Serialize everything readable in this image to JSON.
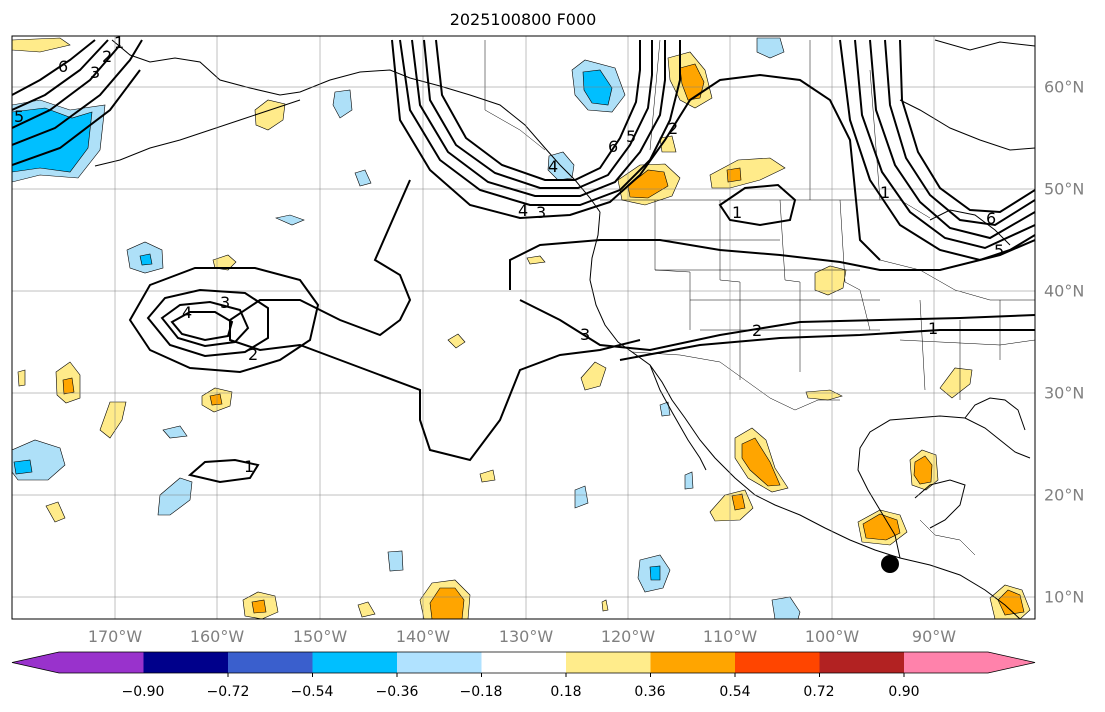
{
  "title": "2025100800 F000",
  "map": {
    "projection": "PlateCarree",
    "lon_range": [
      -180,
      -81
    ],
    "lat_range": [
      8,
      65
    ],
    "lon_labels": [
      "170°W",
      "160°W",
      "150°W",
      "140°W",
      "130°W",
      "120°W",
      "110°W",
      "100°W",
      "90°W"
    ],
    "lat_labels": [
      "60°N",
      "50°N",
      "40°N",
      "30°N",
      "20°N",
      "10°N"
    ],
    "contour_labels": [
      "6",
      "5",
      "3",
      "2",
      "1",
      "4",
      "4",
      "3",
      "6",
      "5",
      "2",
      "1",
      "4",
      "3",
      "2",
      "3",
      "2",
      "1",
      "1",
      "6",
      "5",
      "1"
    ],
    "storm_marker": {
      "symbol": "filled-circle",
      "color": "#000000"
    },
    "fill_colors": {
      "light_blue": "#aee0f8",
      "cyan": "#00bfff",
      "light_yellow": "#ffeb8a",
      "orange": "#ffa500"
    }
  },
  "colorbar": {
    "colors": [
      "#9932cc",
      "#00008b",
      "#3a5fcd",
      "#00bfff",
      "#b0e2ff",
      "#ffffff",
      "#ffec8b",
      "#ffa500",
      "#ff4500",
      "#b22222",
      "#ff82ab"
    ],
    "tick_labels": [
      "−0.90",
      "−0.72",
      "−0.54",
      "−0.36",
      "−0.18",
      "0.18",
      "0.36",
      "0.54",
      "0.72",
      "0.90"
    ],
    "ticks": [
      -0.9,
      -0.72,
      -0.54,
      -0.36,
      -0.18,
      0.18,
      0.36,
      0.54,
      0.72,
      0.9
    ],
    "extend": "both"
  }
}
